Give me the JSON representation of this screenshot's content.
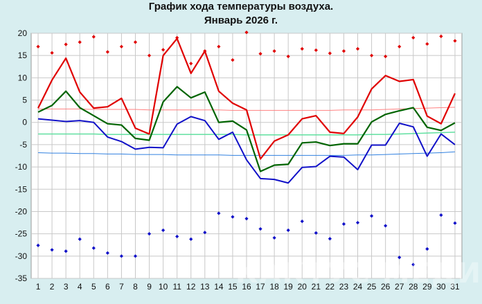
{
  "page": {
    "title_line1": "График хода температуры воздуха.",
    "title_line2": "Январь 2026 г.",
    "watermark": "КАКТУС МЕДИА"
  },
  "chart_data": {
    "type": "line",
    "x": [
      1,
      2,
      3,
      4,
      5,
      6,
      7,
      8,
      9,
      10,
      11,
      12,
      13,
      14,
      15,
      16,
      17,
      18,
      19,
      20,
      21,
      22,
      23,
      24,
      25,
      26,
      27,
      28,
      29,
      30,
      31
    ],
    "ylim": [
      -35,
      20
    ],
    "yticks": [
      20,
      15,
      10,
      5,
      0,
      -5,
      -10,
      -15,
      -20,
      -25,
      -30,
      -35
    ],
    "grid": true,
    "colors": {
      "background": "#d8eef0",
      "plot_background": "#ffffff",
      "grid": "#c8c8c8",
      "max": "#e00000",
      "mean": "#006400",
      "min": "#1010c8",
      "norm_max": "#ff8080",
      "norm_mean": "#60e0a0",
      "norm_min": "#3080e0"
    },
    "series": [
      {
        "key": "max",
        "style": "line",
        "values": [
          3.2,
          9.5,
          14.4,
          6.8,
          3.2,
          3.5,
          5.4,
          -1.3,
          -2.6,
          15.0,
          18.8,
          11.0,
          16.0,
          7.0,
          4.3,
          2.8,
          -8.2,
          -4.2,
          -2.8,
          0.8,
          1.5,
          -2.2,
          -2.5,
          1.2,
          7.5,
          10.5,
          9.2,
          9.6,
          1.4,
          -0.3,
          6.5
        ]
      },
      {
        "key": "mean",
        "style": "line",
        "values": [
          2.3,
          3.8,
          7.0,
          3.3,
          1.5,
          -0.3,
          -0.6,
          -3.6,
          -4.0,
          4.6,
          8.0,
          5.5,
          6.8,
          0.0,
          0.3,
          -1.7,
          -11.0,
          -9.6,
          -9.4,
          -4.6,
          -4.4,
          -5.2,
          -4.8,
          -4.8,
          0.1,
          1.8,
          2.6,
          3.3,
          -1.1,
          -1.8,
          -0.1
        ]
      },
      {
        "key": "min",
        "style": "line",
        "values": [
          0.8,
          0.5,
          0.2,
          0.4,
          0.0,
          -3.3,
          -4.3,
          -6.0,
          -5.6,
          -5.7,
          -0.4,
          1.3,
          0.4,
          -3.8,
          -2.2,
          -8.4,
          -12.6,
          -12.8,
          -13.6,
          -10.1,
          -9.9,
          -7.6,
          -7.8,
          -10.6,
          -5.1,
          -5.1,
          -0.2,
          -1.0,
          -7.6,
          -2.6,
          -5.0
        ]
      },
      {
        "key": "norm_max",
        "style": "line",
        "values": [
          3.0,
          3.0,
          3.0,
          3.0,
          2.9,
          2.9,
          2.9,
          2.9,
          2.8,
          2.8,
          2.8,
          2.8,
          2.8,
          2.8,
          2.7,
          2.7,
          2.7,
          2.7,
          2.7,
          2.7,
          2.7,
          2.7,
          2.8,
          2.8,
          2.8,
          2.9,
          3.0,
          3.1,
          3.2,
          3.3,
          3.4
        ]
      },
      {
        "key": "norm_mean",
        "style": "line",
        "values": [
          -2.6,
          -2.6,
          -2.6,
          -2.6,
          -2.6,
          -2.7,
          -2.7,
          -2.7,
          -2.7,
          -2.7,
          -2.7,
          -2.7,
          -2.7,
          -2.7,
          -2.7,
          -2.8,
          -2.8,
          -2.8,
          -2.8,
          -2.8,
          -2.8,
          -2.8,
          -2.8,
          -2.8,
          -2.7,
          -2.7,
          -2.6,
          -2.5,
          -2.4,
          -2.3,
          -2.2
        ]
      },
      {
        "key": "norm_min",
        "style": "line",
        "values": [
          -6.8,
          -6.9,
          -6.9,
          -7.0,
          -7.0,
          -7.1,
          -7.1,
          -7.2,
          -7.2,
          -7.2,
          -7.3,
          -7.3,
          -7.3,
          -7.3,
          -7.4,
          -7.4,
          -7.4,
          -7.4,
          -7.4,
          -7.4,
          -7.4,
          -7.4,
          -7.4,
          -7.3,
          -7.3,
          -7.2,
          -7.1,
          -7.0,
          -6.9,
          -6.8,
          -6.6
        ]
      },
      {
        "key": "abs_max",
        "style": "markers",
        "values": [
          17.0,
          15.6,
          17.5,
          18.0,
          19.2,
          15.8,
          17.0,
          18.0,
          15.0,
          16.3,
          19.0,
          13.2,
          16.0,
          17.0,
          14.0,
          20.2,
          15.4,
          16.0,
          14.8,
          16.5,
          16.2,
          15.5,
          16.0,
          16.5,
          15.0,
          14.8,
          17.0,
          19.0,
          17.6,
          19.3,
          18.3
        ]
      },
      {
        "key": "abs_min",
        "style": "markers",
        "values": [
          -27.6,
          -28.6,
          -28.9,
          -26.2,
          -28.2,
          -29.3,
          -30.0,
          -30.0,
          -25.0,
          -24.2,
          -25.6,
          -26.2,
          -24.7,
          -20.4,
          -21.2,
          -21.6,
          -23.9,
          -25.9,
          -24.2,
          -22.2,
          -24.8,
          -26.1,
          -22.8,
          -22.5,
          -21.0,
          -23.2,
          -30.3,
          -31.9,
          -28.4,
          -20.8,
          -22.6
        ]
      }
    ]
  }
}
